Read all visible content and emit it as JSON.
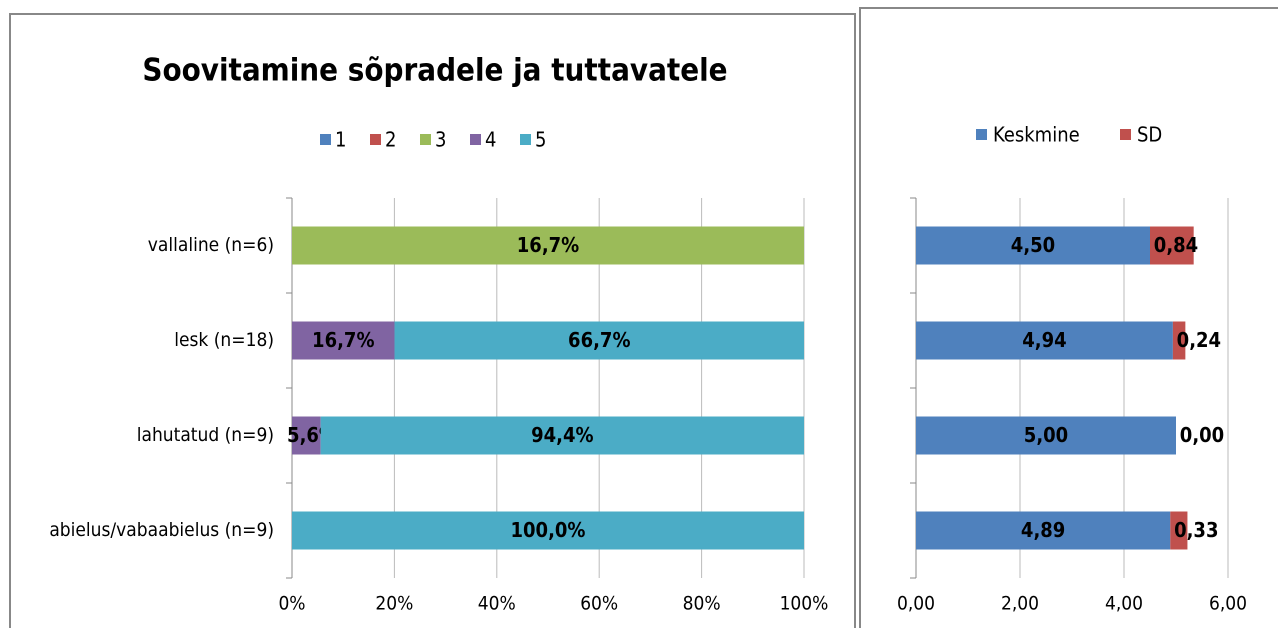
{
  "chart_data": [
    {
      "type": "stacked_bar_horizontal",
      "stack": "percent",
      "title": "Soovitamine sõpradele ja tuttavatele",
      "categories": [
        "vallaline (n=6)",
        "lesk (n=18)",
        "lahutatud (n=9)",
        "abielus/vabaabielus (n=9)"
      ],
      "series": [
        {
          "name": "1",
          "color": "#4f81bd",
          "values": [
            null,
            null,
            null,
            null
          ]
        },
        {
          "name": "2",
          "color": "#c0504d",
          "values": [
            null,
            null,
            null,
            null
          ]
        },
        {
          "name": "3",
          "color": "#9bbb59",
          "values": [
            16.7,
            null,
            null,
            null
          ],
          "value_labels": [
            "16,7%",
            null,
            null,
            null
          ]
        },
        {
          "name": "4",
          "color": "#8064a2",
          "values": [
            null,
            16.7,
            5.6,
            null
          ],
          "value_labels": [
            null,
            "16,7%",
            "5,6%",
            null
          ]
        },
        {
          "name": "5",
          "color": "#4bacc6",
          "values": [
            null,
            66.7,
            94.4,
            100
          ],
          "value_labels": [
            null,
            "66,7%",
            "94,4%",
            "100,0%"
          ]
        }
      ],
      "xlim": [
        0,
        100
      ],
      "xticks": [
        {
          "value": 0,
          "label": "0%"
        },
        {
          "value": 20,
          "label": "20%"
        },
        {
          "value": 40,
          "label": "40%"
        },
        {
          "value": 60,
          "label": "60%"
        },
        {
          "value": 80,
          "label": "80%"
        },
        {
          "value": 100,
          "label": "100%"
        }
      ],
      "grid": true,
      "legend": "top"
    },
    {
      "type": "stacked_bar_horizontal",
      "stack": "normal",
      "series": [
        {
          "name": "Keskmine",
          "color": "#4f81bd",
          "values": [
            4.5,
            4.94,
            5.0,
            4.89
          ],
          "value_labels": [
            "4,50",
            "4,94",
            "5,00",
            "4,89"
          ]
        },
        {
          "name": "SD",
          "color": "#c0504d",
          "values": [
            0.84,
            0.24,
            0.0,
            0.33
          ],
          "value_labels": [
            "0,84",
            "0,24",
            "0,00",
            "0,33"
          ]
        }
      ],
      "xlim": [
        0,
        6
      ],
      "xticks": [
        {
          "value": 0,
          "label": "0,00"
        },
        {
          "value": 2,
          "label": "2,00"
        },
        {
          "value": 4,
          "label": "4,00"
        },
        {
          "value": 6,
          "label": "6,00"
        }
      ],
      "grid": true,
      "legend": "top"
    }
  ]
}
